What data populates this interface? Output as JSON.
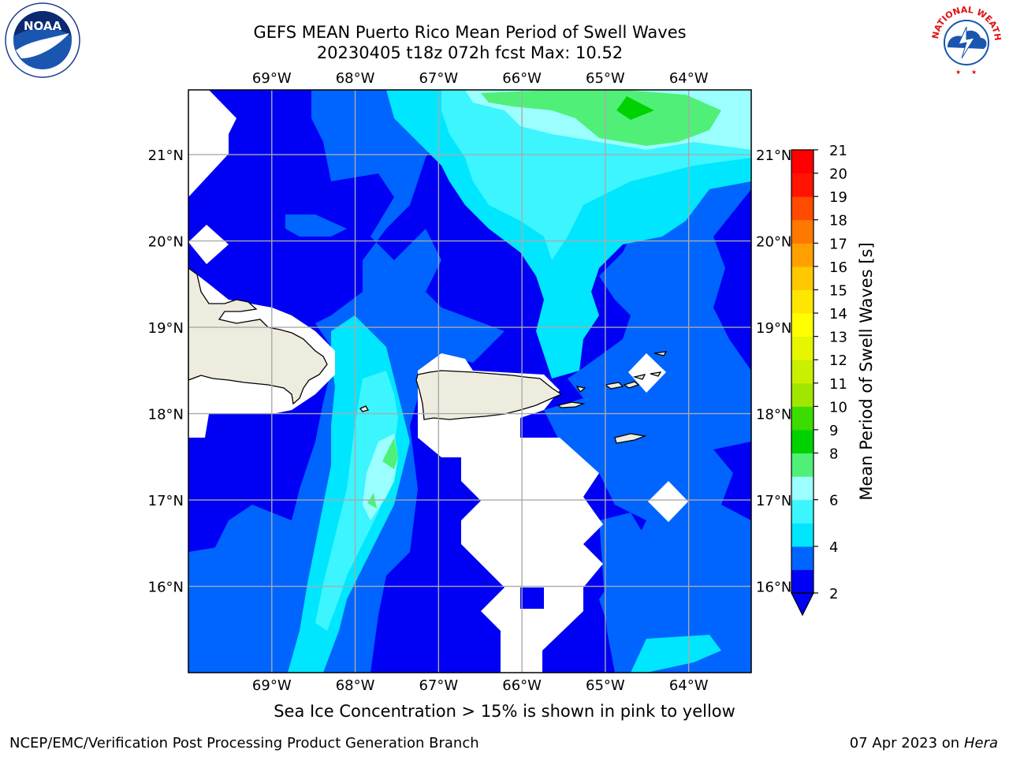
{
  "header": {
    "title_line1": "GEFS MEAN Puerto Rico Mean Period of Swell Waves",
    "title_line2": "20230405 t18z 072h fcst   Max: 10.52"
  },
  "logos": {
    "left": "NOAA",
    "left_ring": "NATIONAL OCEANIC AND ATMOSPHERIC ADMINISTRATION · U.S. DEPARTMENT OF COMMERCE",
    "right_ring": "NATIONAL WEATHER SERVICE"
  },
  "map": {
    "lon_ticks": [
      "69°W",
      "68°W",
      "67°W",
      "66°W",
      "65°W",
      "64°W"
    ],
    "lat_ticks": [
      "21°N",
      "20°N",
      "19°N",
      "18°N",
      "17°N",
      "16°N"
    ],
    "lon_range": [
      -70.0,
      -63.25
    ],
    "lat_range": [
      15.0,
      21.75
    ],
    "grid": true,
    "land_color": "#eeecdf"
  },
  "colorbar": {
    "label": "Mean Period of Swell Waves [s]",
    "levels": [
      2,
      3,
      4,
      5,
      6,
      7,
      8,
      9,
      10,
      11,
      12,
      13,
      14,
      15,
      16,
      17,
      18,
      19,
      20,
      21
    ],
    "tick_labels": [
      "2",
      "4",
      "6",
      "8",
      "9",
      "10",
      "11",
      "12",
      "13",
      "14",
      "15",
      "16",
      "17",
      "18",
      "19",
      "20",
      "21"
    ],
    "colors": [
      "#0000f5",
      "#0064ff",
      "#00e6ff",
      "#3cf5ff",
      "#9cffff",
      "#50f078",
      "#00d200",
      "#3cdc00",
      "#a0e600",
      "#c8f000",
      "#e6f500",
      "#ffff00",
      "#ffe600",
      "#ffc800",
      "#ffa000",
      "#ff7800",
      "#ff4b00",
      "#ff1400",
      "#ff0000"
    ],
    "under_color": "#0000f5"
  },
  "note": "Sea Ice Concentration > 15% is shown in pink to yellow",
  "footer": {
    "left": "NCEP/EMC/Verification Post Processing Product Generation Branch",
    "date": "07 Apr 2023 on",
    "machine": "Hera"
  }
}
